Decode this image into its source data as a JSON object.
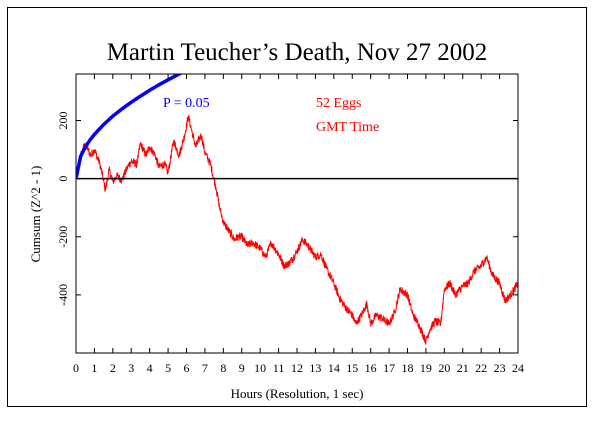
{
  "chart_data": {
    "type": "line",
    "title": "Martin Teucher’s Death, Nov 27 2002",
    "xlabel": "Hours (Resolution, 1 sec)",
    "ylabel": "Cumsum (Z^2 - 1)",
    "xlim": [
      0,
      24
    ],
    "ylim": [
      -600,
      360
    ],
    "x_ticks": [
      0,
      1,
      2,
      3,
      4,
      5,
      6,
      7,
      8,
      9,
      10,
      11,
      12,
      13,
      14,
      15,
      16,
      17,
      18,
      19,
      20,
      21,
      22,
      23,
      24
    ],
    "y_ticks": [
      -400,
      -200,
      0,
      200
    ],
    "grid": false,
    "annotations": [
      "52 Eggs",
      "GMT Time"
    ],
    "colors": {
      "cumsum": "#ff0000",
      "envelope": "#0000ff",
      "axis": "#000000"
    },
    "series": [
      {
        "name": "Cumsum",
        "x": [
          0,
          0.3,
          0.5,
          0.8,
          1.0,
          1.3,
          1.6,
          1.8,
          2.0,
          2.2,
          2.5,
          2.8,
          3.0,
          3.3,
          3.5,
          3.8,
          4.0,
          4.3,
          4.5,
          4.8,
          5.0,
          5.3,
          5.6,
          5.9,
          6.1,
          6.3,
          6.5,
          6.8,
          7.0,
          7.3,
          7.6,
          7.8,
          8.0,
          8.2,
          8.4,
          8.6,
          8.8,
          9.0,
          9.3,
          9.6,
          10.0,
          10.3,
          10.6,
          11.0,
          11.3,
          11.6,
          12.0,
          12.3,
          12.6,
          13.0,
          13.3,
          13.6,
          14.0,
          14.3,
          14.6,
          15.0,
          15.2,
          15.5,
          15.8,
          16.0,
          16.3,
          16.6,
          17.0,
          17.3,
          17.6,
          18.0,
          18.3,
          18.6,
          19.0,
          19.2,
          19.5,
          19.8,
          20.0,
          20.3,
          20.6,
          21.0,
          21.3,
          21.6,
          22.0,
          22.3,
          22.6,
          23.0,
          23.3,
          23.6,
          24.0
        ],
        "y": [
          0,
          90,
          120,
          80,
          100,
          50,
          -40,
          30,
          -10,
          10,
          -5,
          40,
          60,
          50,
          120,
          80,
          110,
          80,
          40,
          50,
          20,
          130,
          80,
          150,
          215,
          160,
          110,
          150,
          90,
          50,
          -30,
          -100,
          -150,
          -170,
          -190,
          -210,
          -200,
          -200,
          -230,
          -220,
          -240,
          -270,
          -220,
          -260,
          -300,
          -290,
          -250,
          -210,
          -230,
          -270,
          -260,
          -310,
          -360,
          -410,
          -440,
          -470,
          -500,
          -470,
          -430,
          -500,
          -470,
          -480,
          -500,
          -460,
          -380,
          -400,
          -470,
          -500,
          -560,
          -520,
          -490,
          -500,
          -380,
          -360,
          -400,
          -370,
          -360,
          -320,
          -300,
          -270,
          -330,
          -360,
          -420,
          -400,
          -360
        ]
      },
      {
        "name": "P = 0.05",
        "x": [
          0,
          0.25,
          0.5,
          0.75,
          1,
          1.5,
          2,
          2.5,
          3,
          3.5,
          4,
          4.5,
          5,
          5.5,
          6,
          6.2
        ],
        "y": [
          0,
          76,
          108,
          132,
          152,
          186,
          215,
          240,
          263,
          284,
          304,
          323,
          340,
          357,
          373,
          378
        ]
      }
    ]
  }
}
